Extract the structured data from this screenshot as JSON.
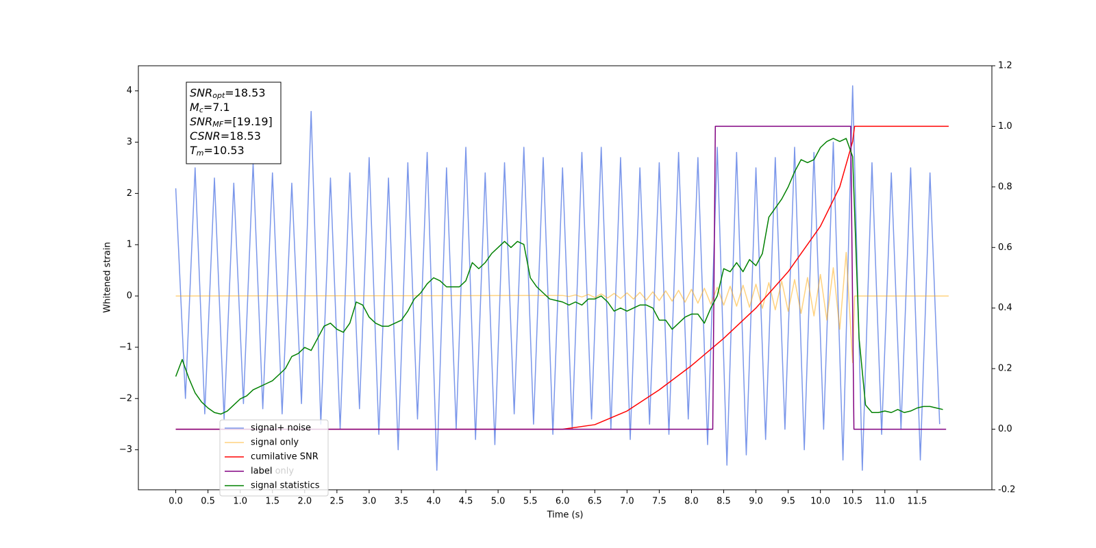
{
  "chart_data": {
    "type": "line",
    "xlabel": "Time (s)",
    "ylabel": "Whitened strain",
    "xlim": [
      -0.58,
      12.66
    ],
    "ylim": [
      -3.78,
      4.49
    ],
    "y2lim": [
      -0.2,
      1.2
    ],
    "xticks": [
      {
        "value": 0,
        "label": "0.0"
      },
      0.5,
      {
        "value": 1,
        "label": "1.0"
      },
      1.5,
      {
        "value": 2,
        "label": "2.0"
      },
      2.5,
      {
        "value": 3,
        "label": "3.0"
      },
      3.5,
      {
        "value": 4,
        "label": "4.0"
      },
      4.5,
      {
        "value": 5,
        "label": "5.0"
      },
      5.5,
      {
        "value": 6,
        "label": "6.0"
      },
      6.5,
      {
        "value": 7,
        "label": "7.0"
      },
      7.5,
      {
        "value": 8,
        "label": "8.0"
      },
      8.5,
      {
        "value": 9,
        "label": "9.0"
      },
      9.5,
      {
        "value": 10,
        "label": "10.0"
      },
      10.5,
      {
        "value": 11,
        "label": "11.0"
      },
      11.5
    ],
    "yticks": [
      {
        "value": -3,
        "label": "−3"
      },
      {
        "value": -2,
        "label": "−2"
      },
      {
        "value": -1,
        "label": "−1"
      },
      0,
      1,
      2,
      3,
      4
    ],
    "y2ticks": [
      -0.2,
      {
        "value": 0,
        "label": "0.0"
      },
      0.2,
      0.4,
      0.6,
      0.8,
      {
        "value": 1,
        "label": "1.0"
      },
      1.2
    ],
    "grid": false,
    "legend": "lower left",
    "overlapped_text": "label only",
    "annotation": [
      {
        "name": "SNR",
        "sub": "opt",
        "text": "=18.53"
      },
      {
        "name": "M",
        "sub": "c",
        "text": "=7.1"
      },
      {
        "name": "SNR",
        "sub": "MF",
        "text": "=[19.19]"
      },
      {
        "name": "CSNR",
        "text": "=18.53"
      },
      {
        "name": "T",
        "sub": "m",
        "text": "=10.53"
      }
    ],
    "series": [
      {
        "name": "signal+ noise",
        "color": "#4169e1",
        "alpha": 0.7,
        "x": [
          0,
          0.15,
          0.3,
          0.45,
          0.6,
          0.75,
          0.9,
          1.05,
          1.2,
          1.35,
          1.5,
          1.65,
          1.8,
          1.95,
          2.1,
          2.25,
          2.4,
          2.55,
          2.7,
          2.85,
          3.0,
          3.15,
          3.3,
          3.45,
          3.6,
          3.75,
          3.9,
          4.05,
          4.2,
          4.35,
          4.5,
          4.65,
          4.8,
          4.95,
          5.1,
          5.25,
          5.4,
          5.55,
          5.7,
          5.85,
          6.0,
          6.15,
          6.3,
          6.45,
          6.6,
          6.75,
          6.9,
          7.05,
          7.2,
          7.35,
          7.5,
          7.65,
          7.8,
          7.95,
          8.1,
          8.25,
          8.4,
          8.55,
          8.7,
          8.85,
          9.0,
          9.15,
          9.3,
          9.45,
          9.6,
          9.75,
          9.9,
          10.05,
          10.2,
          10.35,
          10.5,
          10.65,
          10.8,
          10.95,
          11.1,
          11.25,
          11.4,
          11.55,
          11.7,
          11.85
        ],
        "values": [
          2.1,
          -2.0,
          2.5,
          -2.3,
          2.3,
          -2.4,
          2.2,
          -2.1,
          2.6,
          -2.2,
          2.4,
          -2.3,
          2.2,
          -2.1,
          3.6,
          -2.5,
          2.3,
          -2.6,
          2.4,
          -2.2,
          2.7,
          -2.7,
          2.3,
          -3.0,
          2.6,
          -2.4,
          2.8,
          -3.4,
          2.5,
          -2.6,
          2.9,
          -2.8,
          2.4,
          -2.9,
          2.6,
          -2.3,
          2.9,
          -2.5,
          2.7,
          -2.7,
          2.5,
          -2.6,
          2.8,
          -2.4,
          2.9,
          -2.6,
          2.7,
          -2.8,
          2.5,
          -2.5,
          2.6,
          -2.7,
          2.8,
          -2.4,
          2.7,
          -2.9,
          2.9,
          -3.3,
          2.8,
          -3.1,
          2.5,
          -2.8,
          2.7,
          -2.6,
          2.9,
          -3.0,
          2.8,
          -2.6,
          3.0,
          -3.2,
          4.1,
          -3.4,
          2.6,
          -2.7,
          2.4,
          -2.6,
          2.5,
          -3.2,
          2.4,
          -2.5
        ]
      },
      {
        "name": "signal only",
        "color": "#ffa500",
        "alpha": 0.5,
        "x": [
          0,
          6.0,
          6.1,
          6.2,
          6.3,
          6.4,
          6.5,
          6.6,
          6.7,
          6.8,
          6.9,
          7.0,
          7.1,
          7.2,
          7.3,
          7.4,
          7.5,
          7.6,
          7.7,
          7.8,
          7.9,
          8.0,
          8.1,
          8.2,
          8.3,
          8.4,
          8.5,
          8.6,
          8.7,
          8.8,
          8.9,
          9.0,
          9.1,
          9.2,
          9.3,
          9.4,
          9.5,
          9.6,
          9.7,
          9.8,
          9.9,
          10.0,
          10.1,
          10.2,
          10.3,
          10.4,
          10.5,
          10.53,
          11.99
        ],
        "values": [
          0,
          0.01,
          -0.01,
          0.02,
          -0.02,
          0.03,
          -0.03,
          0.04,
          -0.04,
          0.05,
          -0.05,
          0.06,
          -0.06,
          0.07,
          -0.08,
          0.08,
          -0.09,
          0.1,
          -0.1,
          0.11,
          -0.12,
          0.13,
          -0.14,
          0.15,
          -0.16,
          0.17,
          -0.18,
          0.19,
          -0.2,
          0.21,
          -0.22,
          0.23,
          -0.24,
          0.26,
          -0.27,
          0.29,
          -0.3,
          0.32,
          -0.34,
          0.36,
          -0.39,
          0.42,
          -0.47,
          0.55,
          -0.65,
          0.85,
          -1.3,
          0,
          0
        ]
      },
      {
        "name": "cumilative SNR",
        "color": "#ff0000",
        "alpha": 1,
        "axis": "y2",
        "x": [
          0,
          6.0,
          6.5,
          7.0,
          7.5,
          8.0,
          8.5,
          9.0,
          9.5,
          10.0,
          10.3,
          10.5,
          10.53,
          11.99
        ],
        "values": [
          0,
          0,
          0.015,
          0.06,
          0.13,
          0.21,
          0.3,
          0.4,
          0.52,
          0.67,
          0.8,
          0.95,
          1.0,
          1.0
        ]
      },
      {
        "name": "label",
        "color": "#800080",
        "alpha": 1,
        "axis": "y2",
        "x": [
          0,
          8.33,
          8.37,
          10.47,
          10.52,
          11.95
        ],
        "values": [
          0,
          0,
          1,
          1,
          0,
          0
        ]
      },
      {
        "name": "signal statistics",
        "color": "#008000",
        "alpha": 1,
        "axis": "y2",
        "x": [
          0,
          0.1,
          0.2,
          0.3,
          0.4,
          0.5,
          0.6,
          0.7,
          0.8,
          0.9,
          1.0,
          1.1,
          1.2,
          1.3,
          1.4,
          1.5,
          1.6,
          1.7,
          1.8,
          1.9,
          2.0,
          2.1,
          2.2,
          2.3,
          2.4,
          2.5,
          2.6,
          2.7,
          2.8,
          2.9,
          3.0,
          3.1,
          3.2,
          3.3,
          3.4,
          3.5,
          3.6,
          3.7,
          3.8,
          3.9,
          4.0,
          4.1,
          4.2,
          4.3,
          4.4,
          4.5,
          4.6,
          4.7,
          4.8,
          4.9,
          5.0,
          5.1,
          5.2,
          5.3,
          5.4,
          5.5,
          5.6,
          5.7,
          5.8,
          5.9,
          6.0,
          6.1,
          6.2,
          6.3,
          6.4,
          6.5,
          6.6,
          6.7,
          6.8,
          6.9,
          7.0,
          7.1,
          7.2,
          7.3,
          7.4,
          7.5,
          7.6,
          7.7,
          7.8,
          7.9,
          8.0,
          8.1,
          8.2,
          8.3,
          8.4,
          8.5,
          8.6,
          8.7,
          8.8,
          8.9,
          9.0,
          9.1,
          9.2,
          9.3,
          9.4,
          9.5,
          9.6,
          9.7,
          9.8,
          9.9,
          10.0,
          10.1,
          10.2,
          10.3,
          10.4,
          10.5,
          10.6,
          10.7,
          10.8,
          10.9,
          11.0,
          11.1,
          11.2,
          11.3,
          11.4,
          11.5,
          11.6,
          11.7,
          11.8,
          11.9
        ],
        "values": [
          0.174,
          0.23,
          0.17,
          0.12,
          0.09,
          0.07,
          0.055,
          0.05,
          0.06,
          0.08,
          0.1,
          0.11,
          0.13,
          0.14,
          0.15,
          0.16,
          0.18,
          0.2,
          0.24,
          0.25,
          0.27,
          0.26,
          0.3,
          0.34,
          0.35,
          0.33,
          0.32,
          0.35,
          0.42,
          0.41,
          0.37,
          0.35,
          0.34,
          0.34,
          0.35,
          0.36,
          0.39,
          0.43,
          0.45,
          0.48,
          0.5,
          0.49,
          0.47,
          0.47,
          0.47,
          0.49,
          0.55,
          0.53,
          0.55,
          0.58,
          0.6,
          0.62,
          0.6,
          0.62,
          0.61,
          0.5,
          0.47,
          0.45,
          0.43,
          0.425,
          0.42,
          0.41,
          0.42,
          0.41,
          0.43,
          0.43,
          0.44,
          0.42,
          0.39,
          0.4,
          0.39,
          0.4,
          0.41,
          0.41,
          0.4,
          0.36,
          0.36,
          0.33,
          0.35,
          0.37,
          0.38,
          0.38,
          0.35,
          0.4,
          0.44,
          0.53,
          0.52,
          0.55,
          0.52,
          0.56,
          0.54,
          0.58,
          0.7,
          0.73,
          0.76,
          0.8,
          0.85,
          0.89,
          0.88,
          0.89,
          0.93,
          0.95,
          0.96,
          0.95,
          0.96,
          0.9,
          0.3,
          0.08,
          0.055,
          0.055,
          0.06,
          0.055,
          0.065,
          0.055,
          0.06,
          0.07,
          0.075,
          0.075,
          0.07,
          0.065
        ]
      }
    ]
  }
}
